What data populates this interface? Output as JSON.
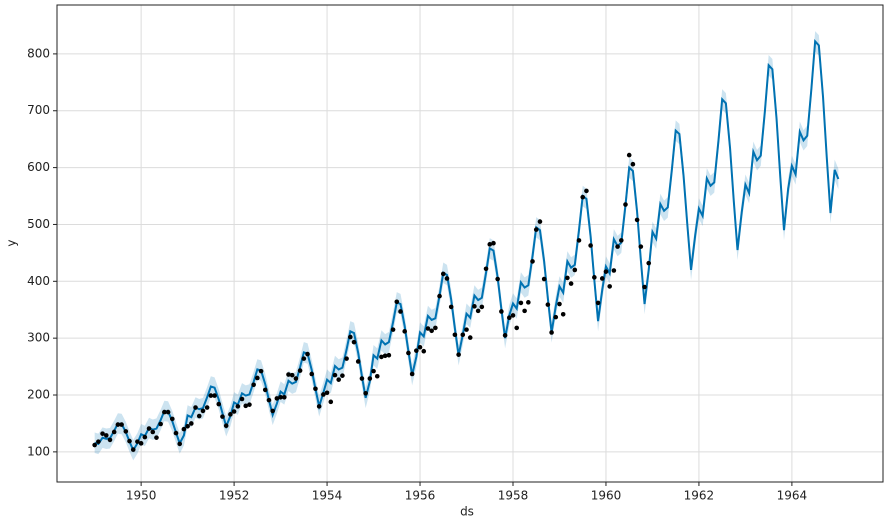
{
  "chart_data": {
    "type": "line",
    "x_label": "ds",
    "y_label": "y",
    "x": [
      1949,
      1949.08,
      1949.17,
      1949.25,
      1949.33,
      1949.42,
      1949.5,
      1949.58,
      1949.67,
      1949.75,
      1949.83,
      1949.92,
      1950,
      1950.08,
      1950.17,
      1950.25,
      1950.33,
      1950.42,
      1950.5,
      1950.58,
      1950.67,
      1950.75,
      1950.83,
      1950.92,
      1951,
      1951.08,
      1951.17,
      1951.25,
      1951.33,
      1951.42,
      1951.5,
      1951.58,
      1951.67,
      1951.75,
      1951.83,
      1951.92,
      1952,
      1952.08,
      1952.17,
      1952.25,
      1952.33,
      1952.42,
      1952.5,
      1952.58,
      1952.67,
      1952.75,
      1952.83,
      1952.92,
      1953,
      1953.08,
      1953.17,
      1953.25,
      1953.33,
      1953.42,
      1953.5,
      1953.58,
      1953.67,
      1953.75,
      1953.83,
      1953.92,
      1954,
      1954.08,
      1954.17,
      1954.25,
      1954.33,
      1954.42,
      1954.5,
      1954.58,
      1954.67,
      1954.75,
      1954.83,
      1954.92,
      1955,
      1955.08,
      1955.17,
      1955.25,
      1955.33,
      1955.42,
      1955.5,
      1955.58,
      1955.67,
      1955.75,
      1955.83,
      1955.92,
      1956,
      1956.08,
      1956.17,
      1956.25,
      1956.33,
      1956.42,
      1956.5,
      1956.58,
      1956.67,
      1956.75,
      1956.83,
      1956.92,
      1957,
      1957.08,
      1957.17,
      1957.25,
      1957.33,
      1957.42,
      1957.5,
      1957.58,
      1957.67,
      1957.75,
      1957.83,
      1957.92,
      1958,
      1958.08,
      1958.17,
      1958.25,
      1958.33,
      1958.42,
      1958.5,
      1958.58,
      1958.67,
      1958.75,
      1958.83,
      1958.92,
      1959,
      1959.08,
      1959.17,
      1959.25,
      1959.33,
      1959.42,
      1959.5,
      1959.58,
      1959.67,
      1959.75,
      1959.83,
      1959.92,
      1960,
      1960.08,
      1960.17,
      1960.25,
      1960.33,
      1960.42,
      1960.5,
      1960.58,
      1960.67,
      1960.75,
      1960.83,
      1960.92,
      1961,
      1961.08,
      1961.17,
      1961.25,
      1961.33,
      1961.42,
      1961.5,
      1961.58,
      1961.67,
      1961.75,
      1961.83,
      1961.92,
      1962,
      1962.08,
      1962.17,
      1962.25,
      1962.33,
      1962.42,
      1962.5,
      1962.58,
      1962.67,
      1962.75,
      1962.83,
      1962.92,
      1963,
      1963.08,
      1963.17,
      1963.25,
      1963.33,
      1963.42,
      1963.5,
      1963.58,
      1963.67,
      1963.75,
      1963.83,
      1963.92,
      1964,
      1964.08,
      1964.17,
      1964.25,
      1964.33,
      1964.42,
      1964.5,
      1964.58,
      1964.67,
      1964.75,
      1964.83,
      1964.92,
      1965
    ],
    "series": [
      {
        "type": "scatter",
        "color": "#000000",
        "values": [
          112,
          118,
          132,
          129,
          121,
          135,
          148,
          148,
          136,
          119,
          104,
          118,
          115,
          126,
          141,
          135,
          125,
          149,
          170,
          170,
          158,
          133,
          114,
          140,
          145,
          150,
          178,
          163,
          172,
          178,
          199,
          199,
          184,
          162,
          146,
          166,
          171,
          180,
          193,
          181,
          183,
          218,
          230,
          242,
          209,
          191,
          172,
          194,
          196,
          196,
          236,
          235,
          229,
          243,
          264,
          272,
          237,
          211,
          180,
          201,
          204,
          188,
          235,
          227,
          234,
          264,
          302,
          293,
          259,
          229,
          203,
          229,
          242,
          233,
          267,
          269,
          270,
          315,
          364,
          347,
          312,
          274,
          237,
          278,
          284,
          277,
          317,
          313,
          318,
          374,
          413,
          405,
          355,
          306,
          271,
          306,
          315,
          301,
          356,
          348,
          355,
          422,
          465,
          467,
          404,
          347,
          305,
          336,
          340,
          318,
          362,
          348,
          363,
          435,
          491,
          505,
          404,
          359,
          310,
          337,
          360,
          342,
          406,
          396,
          420,
          472,
          548,
          559,
          463,
          407,
          362,
          405,
          417,
          391,
          419,
          461,
          472,
          535,
          622,
          606,
          508,
          461,
          390,
          432,
          null,
          null,
          null,
          null,
          null,
          null,
          null,
          null,
          null,
          null,
          null,
          null,
          null,
          null,
          null,
          null,
          null,
          null,
          null,
          null,
          null,
          null,
          null,
          null,
          null,
          null,
          null,
          null,
          null,
          null,
          null,
          null,
          null,
          null,
          null,
          null,
          null,
          null,
          null,
          null,
          null,
          null,
          null,
          null,
          null,
          null,
          null,
          null,
          null
        ]
      },
      {
        "type": "line",
        "color": "#0072B2",
        "band_color": "#0072B2",
        "values": [
          116,
          114,
          125,
          123,
          124,
          137,
          150,
          149,
          135,
          118,
          103,
          115,
          131,
          128,
          142,
          139,
          141,
          156,
          172,
          171,
          154,
          134,
          115,
          129,
          164,
          161,
          178,
          175,
          177,
          196,
          215,
          213,
          192,
          168,
          145,
          163,
          187,
          183,
          203,
          199,
          201,
          223,
          245,
          243,
          219,
          191,
          165,
          185,
          206,
          201,
          225,
          220,
          223,
          249,
          275,
          273,
          244,
          211,
          180,
          204,
          227,
          221,
          251,
          245,
          248,
          280,
          312,
          309,
          274,
          233,
          195,
          224,
          270,
          264,
          296,
          289,
          293,
          328,
          363,
          360,
          321,
          277,
          235,
          267,
          310,
          303,
          339,
          332,
          335,
          375,
          415,
          411,
          368,
          317,
          270,
          306,
          343,
          336,
          375,
          367,
          371,
          415,
          458,
          454,
          407,
          351,
          300,
          340,
          361,
          352,
          398,
          389,
          393,
          444,
          495,
          490,
          435,
          370,
          310,
          356,
          391,
          380,
          435,
          424,
          429,
          490,
          550,
          545,
          479,
          402,
          330,
          385,
          426,
          414,
          474,
          462,
          468,
          534,
          600,
          594,
          522,
          438,
          360,
          420,
          487,
          475,
          536,
          524,
          530,
          598,
          665,
          659,
          585,
          500,
          420,
          481,
          528,
          515,
          581,
          568,
          574,
          647,
          720,
          713,
          634,
          541,
          455,
          521,
          570,
          555,
          628,
          613,
          621,
          700,
          780,
          773,
          686,
          584,
          490,
          563,
          603,
          588,
          663,
          648,
          656,
          739,
          822,
          815,
          724,
          618,
          520,
          596,
          580
        ],
        "lower": [
          98,
          96,
          107,
          105,
          106,
          119,
          132,
          131,
          117,
          100,
          85,
          97,
          113,
          110,
          124,
          121,
          123,
          138,
          154,
          153,
          136,
          116,
          97,
          111,
          146,
          143,
          160,
          157,
          159,
          178,
          197,
          195,
          174,
          150,
          127,
          145,
          169,
          165,
          185,
          181,
          183,
          205,
          227,
          225,
          201,
          173,
          147,
          167,
          188,
          183,
          207,
          202,
          205,
          231,
          257,
          255,
          226,
          193,
          162,
          186,
          209,
          203,
          233,
          227,
          230,
          262,
          294,
          291,
          256,
          215,
          177,
          206,
          252,
          246,
          278,
          271,
          275,
          310,
          345,
          342,
          303,
          259,
          217,
          249,
          292,
          285,
          321,
          314,
          317,
          357,
          397,
          393,
          350,
          299,
          252,
          288,
          325,
          318,
          357,
          349,
          353,
          397,
          440,
          436,
          389,
          333,
          282,
          322,
          343,
          334,
          380,
          371,
          375,
          426,
          477,
          472,
          417,
          352,
          292,
          338,
          373,
          362,
          417,
          406,
          411,
          472,
          532,
          527,
          461,
          384,
          312,
          367,
          408,
          396,
          456,
          444,
          450,
          516,
          582,
          576,
          504,
          420,
          342,
          402,
          469,
          457,
          518,
          506,
          512,
          580,
          647,
          641,
          567,
          482,
          402,
          463,
          510,
          497,
          563,
          550,
          556,
          629,
          702,
          695,
          616,
          523,
          437,
          503,
          552,
          537,
          610,
          595,
          603,
          682,
          762,
          755,
          668,
          566,
          472,
          545,
          585,
          570,
          645,
          630,
          638,
          721,
          804,
          797,
          706,
          600,
          502,
          578,
          562
        ],
        "upper": [
          134,
          132,
          143,
          141,
          142,
          155,
          168,
          167,
          153,
          136,
          121,
          133,
          149,
          146,
          160,
          157,
          159,
          174,
          190,
          189,
          172,
          152,
          133,
          147,
          182,
          179,
          196,
          193,
          195,
          214,
          233,
          231,
          210,
          186,
          163,
          181,
          205,
          201,
          221,
          217,
          219,
          241,
          263,
          261,
          237,
          209,
          183,
          203,
          224,
          219,
          243,
          238,
          241,
          267,
          293,
          291,
          262,
          229,
          198,
          222,
          245,
          239,
          269,
          263,
          266,
          298,
          330,
          327,
          292,
          251,
          213,
          242,
          288,
          282,
          314,
          307,
          311,
          346,
          381,
          378,
          339,
          295,
          253,
          285,
          328,
          321,
          357,
          350,
          353,
          393,
          433,
          429,
          386,
          335,
          288,
          324,
          361,
          354,
          393,
          385,
          389,
          433,
          476,
          472,
          425,
          369,
          318,
          358,
          379,
          370,
          416,
          407,
          411,
          462,
          513,
          508,
          453,
          388,
          328,
          374,
          409,
          398,
          453,
          442,
          447,
          508,
          568,
          563,
          497,
          420,
          348,
          403,
          444,
          432,
          492,
          480,
          486,
          552,
          618,
          612,
          540,
          456,
          378,
          438,
          505,
          493,
          554,
          542,
          548,
          616,
          683,
          677,
          603,
          518,
          438,
          499,
          546,
          533,
          599,
          586,
          592,
          665,
          738,
          731,
          652,
          559,
          473,
          539,
          588,
          573,
          646,
          631,
          639,
          718,
          798,
          791,
          704,
          602,
          508,
          581,
          621,
          606,
          681,
          666,
          674,
          757,
          840,
          833,
          742,
          636,
          538,
          614,
          598
        ]
      }
    ],
    "xlim": [
      1948.19,
      1965.96
    ],
    "ylim": [
      47,
      886
    ],
    "xticks": [
      1950,
      1952,
      1954,
      1956,
      1958,
      1960,
      1962,
      1964
    ],
    "yticks": [
      100,
      200,
      300,
      400,
      500,
      600,
      700,
      800
    ],
    "grid": true
  }
}
